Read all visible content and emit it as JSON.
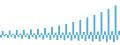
{
  "chart_data": {
    "type": "bar",
    "values": [
      -500,
      800,
      -300,
      200,
      -600,
      900,
      -350,
      250,
      -700,
      1000,
      -400,
      300,
      -750,
      1050,
      -420,
      320,
      -800,
      1100,
      -450,
      350,
      -850,
      1200,
      -480,
      380,
      -900,
      1400,
      -520,
      420,
      -950,
      1600,
      -560,
      460,
      -1000,
      1900,
      -600,
      500,
      -1050,
      2200,
      -640,
      540,
      -1100,
      2600,
      -680,
      580,
      -1150,
      3000,
      -720,
      620,
      -1200,
      3500,
      -760,
      660,
      -1250,
      4000,
      -800,
      700,
      -1300,
      4600,
      -840,
      740,
      -1350,
      5200,
      -880,
      780,
      -1400,
      5900,
      -920,
      820
    ],
    "color": "#4da6e0",
    "ylim": [
      -2000,
      7000
    ],
    "grid": false,
    "tick_labels": false
  }
}
